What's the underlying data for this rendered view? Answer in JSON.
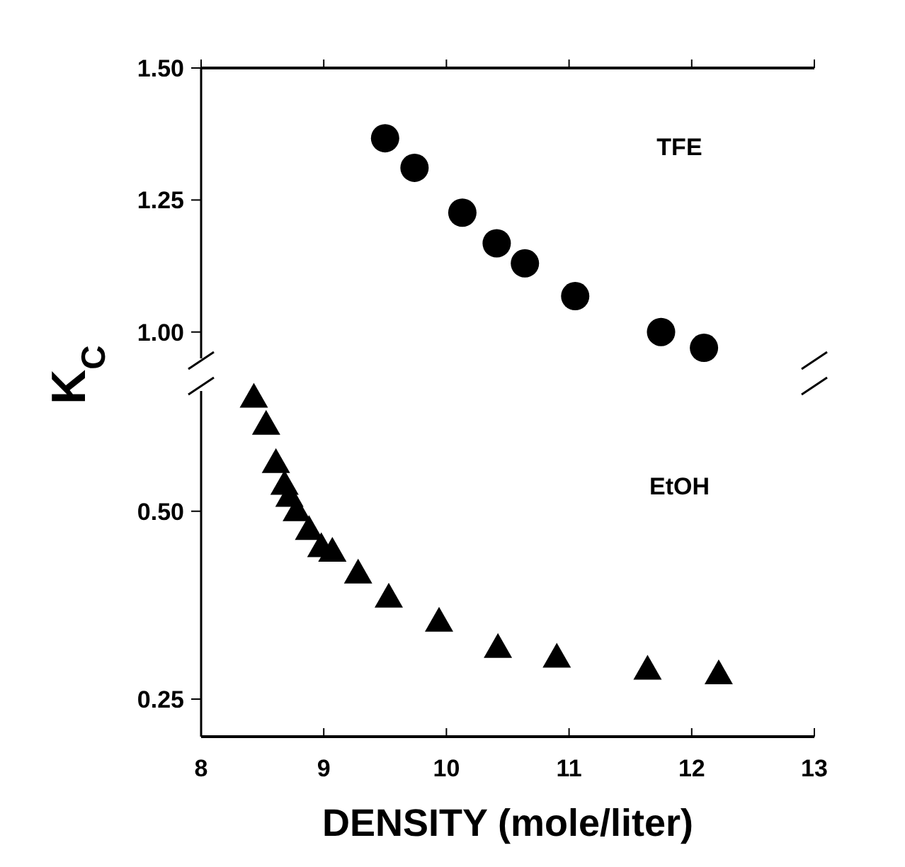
{
  "chart_data": [
    {
      "type": "scatter",
      "ylabel": "K$_{C}$",
      "xlim": [
        8,
        13
      ],
      "xticks": [
        8,
        9,
        10,
        11,
        12,
        13
      ],
      "ylim": [
        0.95,
        1.5
      ],
      "yticks": [
        {
          "value": 1,
          "label": "1.00"
        },
        {
          "value": 1.25,
          "label": "1.25"
        },
        {
          "value": 1.5,
          "label": "1.50"
        }
      ],
      "tick_labels": "y",
      "grid": false,
      "series": [
        {
          "name": "TFE",
          "color": "#000000",
          "marker": "circle",
          "x": [
            9.5,
            9.74,
            10.13,
            10.41,
            10.64,
            11.05,
            11.75,
            12.1
          ],
          "values": [
            1.367,
            1.311,
            1.226,
            1.168,
            1.13,
            1.068,
            1.0,
            0.97
          ]
        }
      ]
    },
    {
      "type": "scatter",
      "xlabel": "DENSITY (mole/liter)",
      "xlim": [
        8,
        13
      ],
      "xticks": [
        8,
        9,
        10,
        11,
        12,
        13
      ],
      "ylim": [
        0.2,
        0.66
      ],
      "yticks": [
        {
          "value": 0.25,
          "label": "0.25"
        },
        {
          "value": 0.5,
          "label": "0.50"
        }
      ],
      "grid": false,
      "series": [
        {
          "name": "EtOH",
          "color": "#000000",
          "marker": "triangle",
          "x": [
            8.43,
            8.53,
            8.61,
            8.68,
            8.72,
            8.78,
            8.88,
            8.98,
            9.07,
            9.28,
            9.53,
            9.94,
            10.42,
            10.9,
            11.64,
            12.22
          ],
          "values": [
            0.652,
            0.616,
            0.565,
            0.536,
            0.52,
            0.501,
            0.476,
            0.453,
            0.447,
            0.418,
            0.386,
            0.354,
            0.319,
            0.306,
            0.29,
            0.284
          ]
        }
      ]
    }
  ]
}
